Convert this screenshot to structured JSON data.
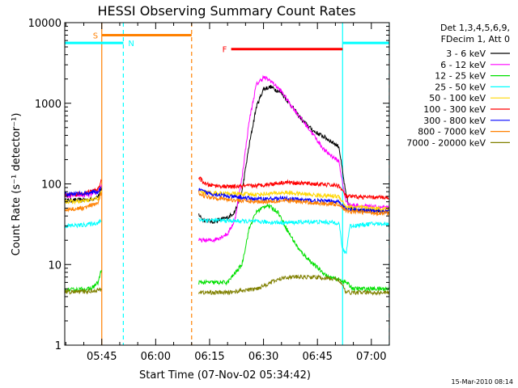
{
  "chart_data": {
    "type": "line",
    "title": "HESSI Observing Summary Count Rates",
    "xlabel": "Start Time (07-Nov-02 05:34:42)",
    "ylabel": "Count Rate (s⁻¹ detector⁻¹)",
    "x_ticks": [
      "05:45",
      "06:00",
      "06:15",
      "06:30",
      "06:45",
      "07:00"
    ],
    "y_ticks": [
      "1",
      "10",
      "100",
      "1000",
      "10000"
    ],
    "ylim": [
      1,
      10000
    ],
    "xlim": [
      "05:34:42",
      "07:05:00"
    ],
    "yscale": "log",
    "legend_header": [
      "Det 1,3,4,5,6,9,",
      "FDecim 1, Att 0"
    ],
    "timestamp": "15-Mar-2010 08:14",
    "flag_labels": [
      "S",
      "N",
      "F"
    ],
    "series": [
      {
        "name": "3 - 6 keV",
        "color": "#000000",
        "points": [
          [
            "05:34:42",
            62
          ],
          [
            "05:38",
            63
          ],
          [
            "05:42",
            64
          ],
          [
            "05:44",
            70
          ],
          [
            "05:45",
            88
          ],
          [
            "06:12",
            42
          ],
          [
            "06:13",
            36
          ],
          [
            "06:16",
            34
          ],
          [
            "06:20",
            38
          ],
          [
            "06:22",
            45
          ],
          [
            "06:24",
            80
          ],
          [
            "06:26",
            300
          ],
          [
            "06:28",
            900
          ],
          [
            "06:30",
            1500
          ],
          [
            "06:32",
            1600
          ],
          [
            "06:35",
            1350
          ],
          [
            "06:38",
            900
          ],
          [
            "06:41",
            600
          ],
          [
            "06:44",
            450
          ],
          [
            "06:47",
            380
          ],
          [
            "06:51",
            290
          ],
          [
            "06:52",
            140
          ],
          [
            "06:53",
            70
          ],
          [
            "06:54",
            50
          ],
          [
            "06:56",
            48
          ],
          [
            "07:00",
            47
          ],
          [
            "07:05",
            45
          ]
        ]
      },
      {
        "name": "6 - 12 keV",
        "color": "#ff00ff",
        "points": [
          [
            "05:34:42",
            70
          ],
          [
            "05:38",
            72
          ],
          [
            "05:42",
            73
          ],
          [
            "05:44",
            80
          ],
          [
            "05:45",
            98
          ],
          [
            "06:12",
            20
          ],
          [
            "06:16",
            20
          ],
          [
            "06:20",
            24
          ],
          [
            "06:22",
            35
          ],
          [
            "06:24",
            120
          ],
          [
            "06:26",
            600
          ],
          [
            "06:28",
            1700
          ],
          [
            "06:30",
            2100
          ],
          [
            "06:32",
            1900
          ],
          [
            "06:35",
            1400
          ],
          [
            "06:38",
            900
          ],
          [
            "06:41",
            600
          ],
          [
            "06:44",
            400
          ],
          [
            "06:47",
            260
          ],
          [
            "06:51",
            190
          ],
          [
            "06:52",
            100
          ],
          [
            "06:53",
            60
          ],
          [
            "06:54",
            55
          ],
          [
            "07:00",
            52
          ],
          [
            "07:05",
            50
          ]
        ]
      },
      {
        "name": "12 - 25 keV",
        "color": "#00e000",
        "points": [
          [
            "05:34:42",
            4.8
          ],
          [
            "05:42",
            5
          ],
          [
            "05:44",
            6
          ],
          [
            "05:45",
            9
          ],
          [
            "06:12",
            6
          ],
          [
            "06:20",
            6
          ],
          [
            "06:24",
            10
          ],
          [
            "06:26",
            28
          ],
          [
            "06:28",
            45
          ],
          [
            "06:31",
            55
          ],
          [
            "06:34",
            45
          ],
          [
            "06:37",
            25
          ],
          [
            "06:40",
            15
          ],
          [
            "06:44",
            10
          ],
          [
            "06:48",
            7
          ],
          [
            "06:51",
            6.5
          ],
          [
            "06:53",
            6
          ],
          [
            "06:55",
            5
          ],
          [
            "07:00",
            5
          ],
          [
            "07:05",
            5
          ]
        ]
      },
      {
        "name": "25 - 50 keV",
        "color": "#00ffff",
        "points": [
          [
            "05:34:42",
            30
          ],
          [
            "05:40",
            31
          ],
          [
            "05:44",
            33
          ],
          [
            "05:45",
            35
          ],
          [
            "06:12",
            36
          ],
          [
            "06:20",
            35
          ],
          [
            "06:28",
            34
          ],
          [
            "06:36",
            33
          ],
          [
            "06:44",
            34
          ],
          [
            "06:51",
            33
          ],
          [
            "06:52",
            15
          ],
          [
            "06:53",
            14
          ],
          [
            "06:54",
            30
          ],
          [
            "07:00",
            32
          ],
          [
            "07:05",
            32
          ]
        ]
      },
      {
        "name": "50 - 100 keV",
        "color": "#ffd700",
        "points": [
          [
            "05:34:42",
            60
          ],
          [
            "05:40",
            61
          ],
          [
            "05:44",
            66
          ],
          [
            "05:45",
            80
          ],
          [
            "06:12",
            82
          ],
          [
            "06:14",
            78
          ],
          [
            "06:20",
            76
          ],
          [
            "06:28",
            74
          ],
          [
            "06:36",
            78
          ],
          [
            "06:44",
            73
          ],
          [
            "06:51",
            70
          ],
          [
            "06:53",
            52
          ],
          [
            "07:00",
            50
          ],
          [
            "07:05",
            49
          ]
        ]
      },
      {
        "name": "100 - 300 keV",
        "color": "#ff0000",
        "points": [
          [
            "05:34:42",
            74
          ],
          [
            "05:40",
            76
          ],
          [
            "05:44",
            85
          ],
          [
            "05:45",
            115
          ],
          [
            "06:12",
            120
          ],
          [
            "06:14",
            98
          ],
          [
            "06:20",
            92
          ],
          [
            "06:28",
            95
          ],
          [
            "06:36",
            105
          ],
          [
            "06:44",
            100
          ],
          [
            "06:51",
            95
          ],
          [
            "06:53",
            70
          ],
          [
            "07:00",
            68
          ],
          [
            "07:05",
            68
          ]
        ]
      },
      {
        "name": "300 - 800 keV",
        "color": "#0000ff",
        "points": [
          [
            "05:34:42",
            75
          ],
          [
            "05:40",
            76
          ],
          [
            "05:44",
            80
          ],
          [
            "05:45",
            90
          ],
          [
            "06:12",
            85
          ],
          [
            "06:14",
            78
          ],
          [
            "06:20",
            70
          ],
          [
            "06:28",
            65
          ],
          [
            "06:36",
            66
          ],
          [
            "06:44",
            62
          ],
          [
            "06:51",
            60
          ],
          [
            "06:53",
            48
          ],
          [
            "07:00",
            46
          ],
          [
            "07:05",
            45
          ]
        ]
      },
      {
        "name": "800 - 7000 keV",
        "color": "#ff8000",
        "points": [
          [
            "05:34:42",
            48
          ],
          [
            "05:40",
            50
          ],
          [
            "05:44",
            58
          ],
          [
            "05:45",
            80
          ],
          [
            "06:12",
            78
          ],
          [
            "06:14",
            70
          ],
          [
            "06:20",
            64
          ],
          [
            "06:28",
            60
          ],
          [
            "06:36",
            62
          ],
          [
            "06:44",
            58
          ],
          [
            "06:51",
            56
          ],
          [
            "06:53",
            46
          ],
          [
            "07:00",
            44
          ],
          [
            "07:05",
            43
          ]
        ]
      },
      {
        "name": "7000 - 20000 keV",
        "color": "#808000",
        "points": [
          [
            "05:34:42",
            4.6
          ],
          [
            "05:40",
            4.6
          ],
          [
            "05:44",
            4.8
          ],
          [
            "05:45",
            5
          ],
          [
            "06:12",
            4.5
          ],
          [
            "06:20",
            4.5
          ],
          [
            "06:28",
            5
          ],
          [
            "06:32",
            6
          ],
          [
            "06:36",
            7
          ],
          [
            "06:44",
            7
          ],
          [
            "06:51",
            6.5
          ],
          [
            "06:53",
            4.5
          ],
          [
            "07:00",
            4.5
          ],
          [
            "07:05",
            4.5
          ]
        ]
      }
    ],
    "flags": [
      {
        "label": "S",
        "color": "#ff8000",
        "start": "05:45",
        "end": "06:10",
        "level": 7000
      },
      {
        "label": "N",
        "color": "#00ffff",
        "start": "05:34:42",
        "end": "05:51",
        "level": 5600
      },
      {
        "label": "N",
        "color": "#00ffff",
        "start": "06:52",
        "end": "07:05",
        "level": 5600
      },
      {
        "label": "F",
        "color": "#ff0000",
        "start": "06:21",
        "end": "06:52",
        "level": 4700
      }
    ],
    "vlines": [
      {
        "time": "05:45",
        "color": "#ff8000",
        "style": "solid"
      },
      {
        "time": "06:10",
        "color": "#ff8000",
        "style": "dashed"
      },
      {
        "time": "05:51",
        "color": "#00ffff",
        "style": "dashed"
      },
      {
        "time": "06:52",
        "color": "#00ffff",
        "style": "solid"
      },
      {
        "time": "07:05",
        "color": "#00ffff",
        "style": "dashed"
      }
    ],
    "grid": false,
    "legend_position": "right"
  }
}
